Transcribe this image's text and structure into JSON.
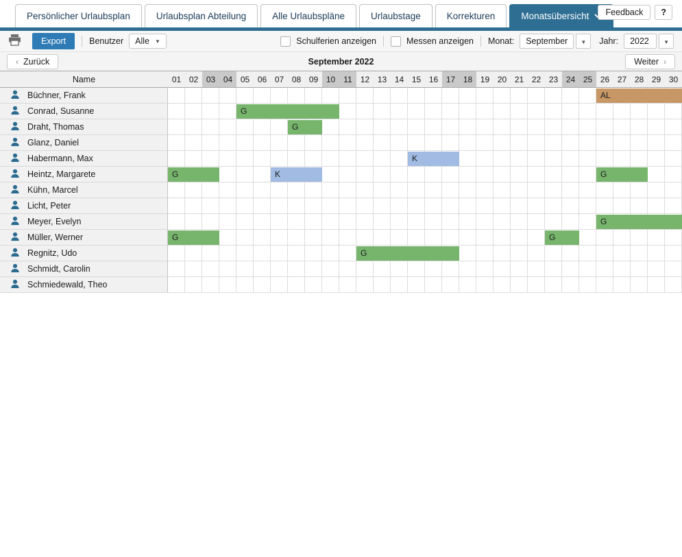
{
  "header": {
    "tabs": [
      {
        "label": "Persönlicher Urlaubsplan",
        "active": false
      },
      {
        "label": "Urlaubsplan Abteilung",
        "active": false
      },
      {
        "label": "Alle Urlaubspläne",
        "active": false
      },
      {
        "label": "Urlaubstage",
        "active": false
      },
      {
        "label": "Korrekturen",
        "active": false
      },
      {
        "label": "Monatsübersicht",
        "active": true
      }
    ],
    "feedback_label": "Feedback",
    "help_label": "?"
  },
  "toolbar": {
    "export_label": "Export",
    "benutzer_label": "Benutzer",
    "benutzer_value": "Alle",
    "schulferien_label": "Schulferien anzeigen",
    "schulferien_checked": false,
    "messen_label": "Messen anzeigen",
    "messen_checked": false,
    "monat_label": "Monat:",
    "monat_value": "September",
    "jahr_label": "Jahr:",
    "jahr_value": "2022"
  },
  "nav": {
    "back_label": "Zurück",
    "title": "September 2022",
    "forward_label": "Weiter"
  },
  "calendar": {
    "name_header": "Name",
    "days": [
      "01",
      "02",
      "03",
      "04",
      "05",
      "06",
      "07",
      "08",
      "09",
      "10",
      "11",
      "12",
      "13",
      "14",
      "15",
      "16",
      "17",
      "18",
      "19",
      "20",
      "21",
      "22",
      "23",
      "24",
      "25",
      "26",
      "27",
      "28",
      "29",
      "30"
    ],
    "weekend_days": [
      3,
      4,
      10,
      11,
      17,
      18,
      24,
      25
    ],
    "bar_colors": {
      "G": "#77b56d",
      "K": "#a2bbe2",
      "AL": "#c79766"
    },
    "rows": [
      {
        "name": "Büchner, Frank",
        "bars": [
          {
            "start": 26,
            "end": 30,
            "type": "AL"
          }
        ]
      },
      {
        "name": "Conrad, Susanne",
        "bars": [
          {
            "start": 5,
            "end": 10,
            "type": "G"
          }
        ]
      },
      {
        "name": "Draht, Thomas",
        "bars": [
          {
            "start": 8,
            "end": 9,
            "type": "G"
          }
        ]
      },
      {
        "name": "Glanz, Daniel",
        "bars": []
      },
      {
        "name": "Habermann, Max",
        "bars": [
          {
            "start": 15,
            "end": 17,
            "type": "K"
          }
        ]
      },
      {
        "name": "Heintz, Margarete",
        "bars": [
          {
            "start": 1,
            "end": 3,
            "type": "G"
          },
          {
            "start": 7,
            "end": 9,
            "type": "K"
          },
          {
            "start": 26,
            "end": 28,
            "type": "G"
          }
        ]
      },
      {
        "name": "Kühn, Marcel",
        "bars": []
      },
      {
        "name": "Licht, Peter",
        "bars": []
      },
      {
        "name": "Meyer, Evelyn",
        "bars": [
          {
            "start": 26,
            "end": 30,
            "type": "G"
          }
        ]
      },
      {
        "name": "Müller, Werner",
        "bars": [
          {
            "start": 1,
            "end": 3,
            "type": "G"
          },
          {
            "start": 23,
            "end": 24,
            "type": "G"
          }
        ]
      },
      {
        "name": "Regnitz, Udo",
        "bars": [
          {
            "start": 12,
            "end": 17,
            "type": "G"
          }
        ]
      },
      {
        "name": "Schmidt, Carolin",
        "bars": []
      },
      {
        "name": "Schmiedewald, Theo",
        "bars": []
      }
    ]
  },
  "colors": {
    "accent": "#2e6e93",
    "export_button": "#2e7bb6",
    "weekend_header": "#c9c9c9",
    "green_bar": "#77b56d",
    "blue_bar": "#a2bbe2",
    "tan_bar": "#c79766"
  }
}
